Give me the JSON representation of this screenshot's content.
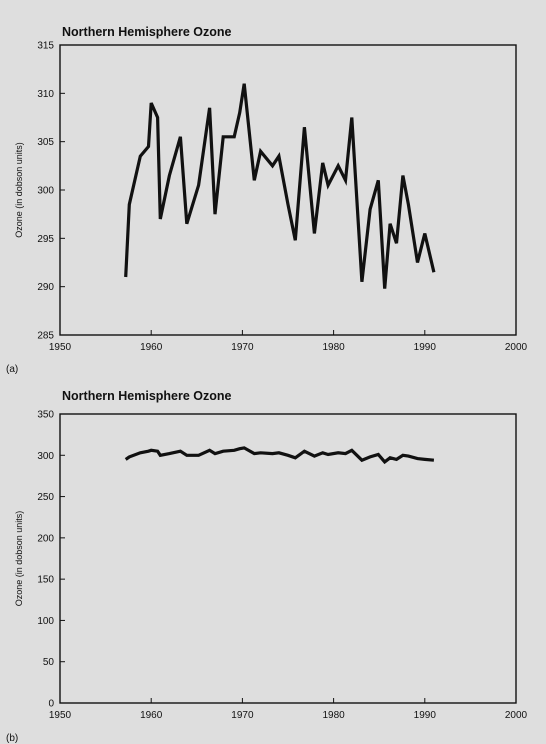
{
  "chart_data": [
    {
      "type": "line",
      "panel_label": "(a)",
      "title": "Northern Hemisphere Ozone",
      "xlabel": "",
      "ylabel": "Ozone (in dobson units)",
      "xlim": [
        1950,
        2000
      ],
      "ylim": [
        285,
        315
      ],
      "x_ticks": [
        1950,
        1960,
        1970,
        1980,
        1990,
        2000
      ],
      "y_ticks": [
        285,
        290,
        295,
        300,
        305,
        310,
        315
      ],
      "grid": false,
      "x": [
        1957.2,
        1957.6,
        1958.8,
        1959.7,
        1960.0,
        1960.7,
        1961.0,
        1962.0,
        1963.2,
        1963.9,
        1965.2,
        1966.4,
        1967.0,
        1967.9,
        1969.1,
        1969.7,
        1970.2,
        1971.3,
        1972.0,
        1973.3,
        1974.0,
        1975.0,
        1975.8,
        1976.8,
        1977.9,
        1978.8,
        1979.4,
        1980.5,
        1981.3,
        1982.0,
        1983.1,
        1984.0,
        1984.9,
        1985.6,
        1986.2,
        1986.9,
        1987.6,
        1988.2,
        1989.2,
        1990.0,
        1991.0
      ],
      "y": [
        291,
        298.5,
        303.5,
        304.5,
        309,
        307.5,
        297,
        301.5,
        305.5,
        296.5,
        300.5,
        308.5,
        297.5,
        305.5,
        305.5,
        308,
        311,
        301,
        304,
        302.5,
        303.5,
        298.5,
        294.8,
        306.5,
        295.5,
        302.8,
        300.5,
        302.5,
        301,
        307.5,
        290.5,
        298,
        301,
        289.8,
        296.5,
        294.5,
        301.5,
        298.5,
        292.5,
        295.5,
        291.5
      ]
    },
    {
      "type": "line",
      "panel_label": "(b)",
      "title": "Northern Hemisphere Ozone",
      "xlabel": "",
      "ylabel": "Ozone (in dobson units)",
      "xlim": [
        1950,
        2000
      ],
      "ylim": [
        0,
        350
      ],
      "x_ticks": [
        1950,
        1960,
        1970,
        1980,
        1990,
        2000
      ],
      "y_ticks": [
        0,
        50,
        100,
        150,
        200,
        250,
        300,
        350
      ],
      "grid": false,
      "x": [
        1957.2,
        1957.6,
        1958.8,
        1959.7,
        1960.0,
        1960.7,
        1961.0,
        1962.0,
        1963.2,
        1963.9,
        1965.2,
        1966.4,
        1967.0,
        1967.9,
        1969.1,
        1969.7,
        1970.2,
        1971.3,
        1972.0,
        1973.3,
        1974.0,
        1975.0,
        1975.8,
        1976.8,
        1977.9,
        1978.8,
        1979.4,
        1980.5,
        1981.3,
        1982.0,
        1983.1,
        1984.0,
        1984.9,
        1985.6,
        1986.2,
        1986.9,
        1987.6,
        1988.2,
        1989.2,
        1990.0,
        1991.0
      ],
      "y": [
        295,
        298,
        303,
        305,
        306,
        305,
        300,
        302,
        305,
        300,
        300,
        306,
        302,
        305,
        306,
        308,
        309,
        302,
        303,
        302,
        303,
        300,
        297,
        305,
        299,
        303,
        301,
        303,
        302,
        306,
        294,
        298,
        301,
        292,
        297,
        295,
        300,
        299,
        296,
        295,
        294
      ]
    }
  ]
}
